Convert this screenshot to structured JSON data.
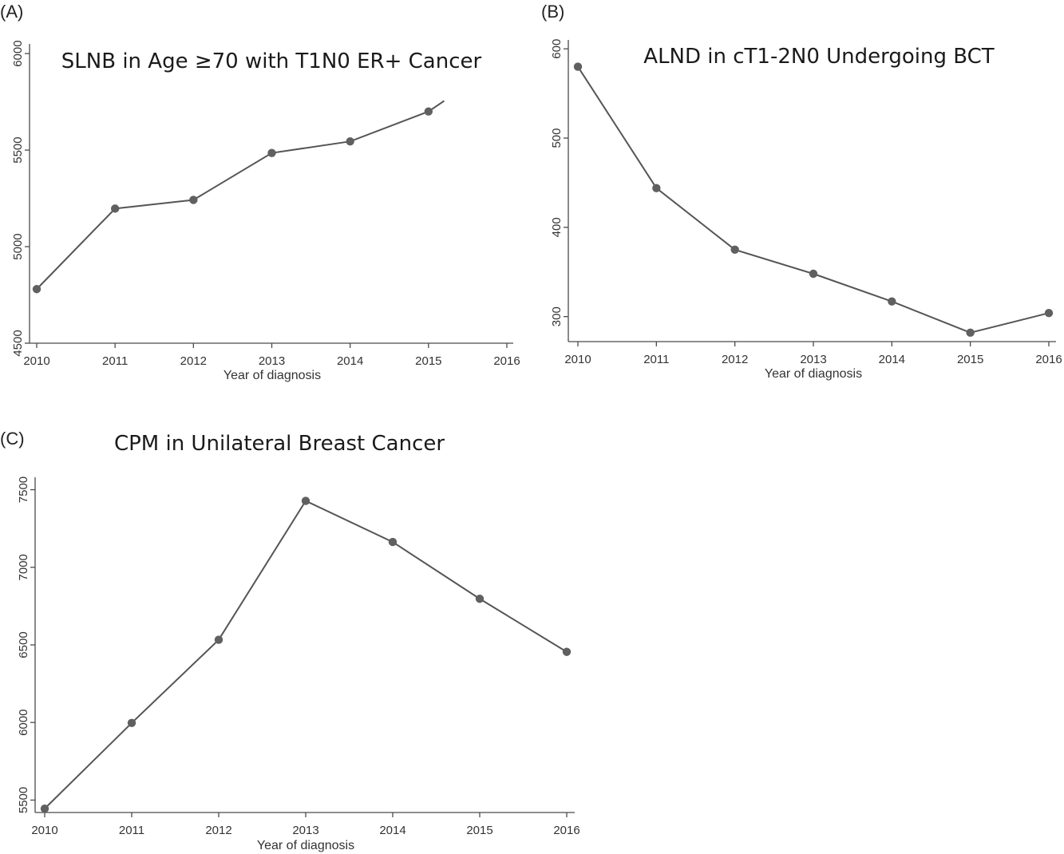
{
  "chart_data": [
    {
      "panel_label": "(A)",
      "type": "line",
      "title": "SLNB in Age ≥70 with T1N0 ER+ Cancer",
      "xlabel": "Year of diagnosis",
      "ylabel": "",
      "x": [
        2010,
        2011,
        2012,
        2013,
        2014,
        2015
      ],
      "y": [
        4780,
        5197,
        5242,
        5485,
        5545,
        5700
      ],
      "line_end": {
        "x": 2015.2,
        "y": 5755
      },
      "xlim": [
        2010,
        2016
      ],
      "ylim": [
        4500,
        6050
      ],
      "xticks": [
        2010,
        2011,
        2012,
        2013,
        2014,
        2015,
        2016
      ],
      "yticks": [
        4500,
        5000,
        5500,
        6000
      ],
      "grid": false,
      "color": "#555555",
      "marker_color": "#606060"
    },
    {
      "panel_label": "(B)",
      "type": "line",
      "title": "ALND in cT1-2N0 Undergoing BCT",
      "xlabel": "Year of diagnosis",
      "ylabel": "",
      "x": [
        2010,
        2011,
        2012,
        2013,
        2014,
        2015,
        2016
      ],
      "y": [
        580,
        444,
        375,
        348,
        317,
        282,
        304
      ],
      "xlim": [
        2010,
        2016
      ],
      "ylim": [
        272,
        610
      ],
      "xticks": [
        2010,
        2011,
        2012,
        2013,
        2014,
        2015,
        2016
      ],
      "yticks": [
        300,
        400,
        500,
        600
      ],
      "grid": false,
      "color": "#555555",
      "marker_color": "#606060"
    },
    {
      "panel_label": "(C)",
      "type": "line",
      "title": "CPM in Unilateral Breast Cancer",
      "xlabel": "Year of diagnosis",
      "ylabel": "",
      "x": [
        2010,
        2011,
        2012,
        2013,
        2014,
        2015,
        2016
      ],
      "y": [
        5445,
        5997,
        6533,
        7428,
        7163,
        6797,
        6455
      ],
      "xlim": [
        2010,
        2016
      ],
      "ylim": [
        5420,
        7580
      ],
      "xticks": [
        2010,
        2011,
        2012,
        2013,
        2014,
        2015,
        2016
      ],
      "yticks": [
        5500,
        6000,
        6500,
        7000,
        7500
      ],
      "grid": false,
      "color": "#555555",
      "marker_color": "#606060"
    }
  ]
}
